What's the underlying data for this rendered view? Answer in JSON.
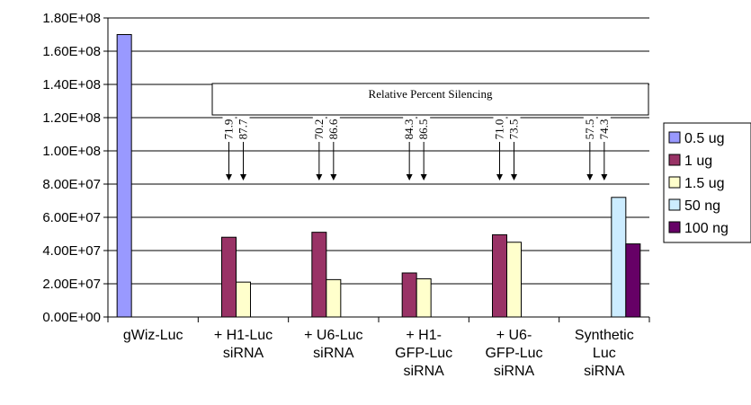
{
  "chart_data": {
    "type": "bar",
    "categories": [
      [
        "gWiz-Luc"
      ],
      [
        "+ H1-Luc",
        "siRNA"
      ],
      [
        "+ U6-Luc",
        "siRNA"
      ],
      [
        "+ H1-",
        "GFP-Luc",
        "siRNA"
      ],
      [
        "+ U6-",
        "GFP-Luc",
        "siRNA"
      ],
      [
        "Synthetic",
        "Luc",
        "siRNA"
      ]
    ],
    "ylim": [
      0,
      180000000
    ],
    "yticks": [
      0,
      20000000,
      40000000,
      60000000,
      80000000,
      100000000,
      120000000,
      140000000,
      160000000,
      180000000
    ],
    "ytick_labels": [
      "0.00E+00",
      "2.00E+07",
      "4.00E+07",
      "6.00E+07",
      "8.00E+07",
      "1.00E+08",
      "1.20E+08",
      "1.40E+08",
      "1.60E+08",
      "1.80E+08"
    ],
    "grid": true,
    "legend_position": "right",
    "series": [
      {
        "name": "0.5 ug",
        "color": "#9999ff",
        "values": [
          170000000,
          null,
          null,
          null,
          null,
          null
        ]
      },
      {
        "name": "1 ug",
        "color": "#993366",
        "values": [
          null,
          48000000,
          51000000,
          26500000,
          49500000,
          null
        ]
      },
      {
        "name": "1.5 ug",
        "color": "#ffffcc",
        "values": [
          null,
          21000000,
          22500000,
          23000000,
          45000000,
          null
        ]
      },
      {
        "name": "50 ng",
        "color": "#ccecff",
        "values": [
          null,
          null,
          null,
          null,
          null,
          72000000
        ]
      },
      {
        "name": "100 ng",
        "color": "#660066",
        "values": [
          null,
          null,
          null,
          null,
          null,
          44000000
        ]
      }
    ],
    "annotation": {
      "title": "Relative Percent Silencing",
      "labels": [
        [
          "71.9",
          "87.7"
        ],
        [
          "70.2",
          "86.6"
        ],
        [
          "84.3",
          "86.5"
        ],
        [
          "71.0",
          "73.5"
        ],
        [
          "57.5",
          "74.3"
        ]
      ]
    }
  }
}
